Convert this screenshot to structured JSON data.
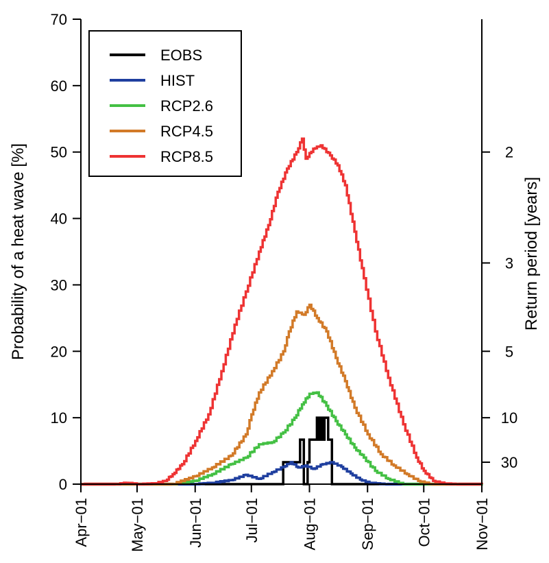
{
  "chart_data": {
    "type": "line",
    "ylabel": "Probability of a heat wave [%]",
    "ylabel_right": "Return period [years]",
    "ylim": [
      0,
      70
    ],
    "yticks": [
      0,
      10,
      20,
      30,
      40,
      50,
      60,
      70
    ],
    "xlim": [
      "2001-04-01",
      "2001-11-01"
    ],
    "xticks": [
      {
        "date": "2001-04-01",
        "label": "Apr−01"
      },
      {
        "date": "2001-05-01",
        "label": "May−01"
      },
      {
        "date": "2001-06-01",
        "label": "Jun−01"
      },
      {
        "date": "2001-07-01",
        "label": "Jul−01"
      },
      {
        "date": "2001-08-01",
        "label": "Aug−01"
      },
      {
        "date": "2001-09-01",
        "label": "Sep−01"
      },
      {
        "date": "2001-10-01",
        "label": "Oct−01"
      },
      {
        "date": "2001-11-01",
        "label": "Nov−01"
      }
    ],
    "right_ticks": [
      {
        "label": "2",
        "probability": 50
      },
      {
        "label": "3",
        "probability": 33.3
      },
      {
        "label": "5",
        "probability": 20
      },
      {
        "label": "10",
        "probability": 10
      },
      {
        "label": "30",
        "probability": 3.3
      }
    ],
    "legend_position": "top-left",
    "series": [
      {
        "name": "EOBS",
        "color": "#000000",
        "step": true,
        "x": [
          "2001-04-01",
          "2001-07-18",
          "2001-07-18",
          "2001-07-27",
          "2001-07-27",
          "2001-07-29",
          "2001-07-29",
          "2001-07-31",
          "2001-07-31",
          "2001-08-01",
          "2001-08-01",
          "2001-08-05",
          "2001-08-05",
          "2001-08-06",
          "2001-08-06",
          "2001-08-07",
          "2001-08-07",
          "2001-08-08",
          "2001-08-08",
          "2001-08-09",
          "2001-08-09",
          "2001-08-11",
          "2001-08-11",
          "2001-08-13",
          "2001-08-13",
          "2001-11-01"
        ],
        "y": [
          0,
          0,
          3.3,
          3.3,
          6.7,
          6.7,
          0,
          0,
          3.3,
          3.3,
          6.7,
          6.7,
          10,
          10,
          6.7,
          6.7,
          10,
          10,
          6.7,
          6.7,
          10,
          10,
          6.7,
          6.7,
          0,
          0
        ]
      },
      {
        "name": "HIST",
        "color": "#1f3f9f",
        "x": [
          "2001-04-01",
          "2001-06-01",
          "2001-06-10",
          "2001-06-20",
          "2001-06-28",
          "2001-07-05",
          "2001-07-12",
          "2001-07-18",
          "2001-07-22",
          "2001-07-26",
          "2001-07-30",
          "2001-08-03",
          "2001-08-08",
          "2001-08-13",
          "2001-08-18",
          "2001-08-23",
          "2001-08-28",
          "2001-09-02",
          "2001-09-10",
          "2001-11-01"
        ],
        "y": [
          0,
          0,
          0.2,
          0.6,
          1.4,
          0.8,
          1.8,
          2.6,
          3.3,
          2.5,
          2.8,
          2.3,
          3.0,
          3.3,
          2.6,
          1.6,
          0.7,
          0.2,
          0,
          0
        ]
      },
      {
        "name": "RCP2.6",
        "color": "#44c044",
        "x": [
          "2001-04-01",
          "2001-05-20",
          "2001-06-01",
          "2001-06-10",
          "2001-06-20",
          "2001-06-28",
          "2001-07-05",
          "2001-07-12",
          "2001-07-18",
          "2001-07-24",
          "2001-07-28",
          "2001-08-01",
          "2001-08-05",
          "2001-08-10",
          "2001-08-15",
          "2001-08-20",
          "2001-08-25",
          "2001-08-30",
          "2001-09-05",
          "2001-09-12",
          "2001-09-20",
          "2001-11-01"
        ],
        "y": [
          0,
          0,
          0.5,
          1.5,
          3.0,
          4.0,
          6.0,
          6.3,
          7.8,
          10.0,
          12.0,
          13.6,
          13.8,
          11.8,
          9.5,
          7.5,
          5.5,
          4.0,
          2.0,
          0.8,
          0,
          0
        ]
      },
      {
        "name": "RCP4.5",
        "color": "#d27a28",
        "x": [
          "2001-04-01",
          "2001-05-20",
          "2001-06-01",
          "2001-06-10",
          "2001-06-20",
          "2001-06-28",
          "2001-07-01",
          "2001-07-05",
          "2001-07-12",
          "2001-07-18",
          "2001-07-21",
          "2001-07-25",
          "2001-07-29",
          "2001-08-01",
          "2001-08-05",
          "2001-08-10",
          "2001-08-15",
          "2001-08-20",
          "2001-08-25",
          "2001-09-01",
          "2001-09-08",
          "2001-09-15",
          "2001-09-22",
          "2001-09-28",
          "2001-10-05",
          "2001-11-01"
        ],
        "y": [
          0,
          0,
          1.2,
          2.5,
          4.3,
          7.5,
          10.5,
          13.8,
          17.0,
          20.0,
          23.0,
          26.0,
          25.5,
          27.0,
          25.0,
          23.0,
          19.0,
          15.5,
          11.5,
          7.5,
          4.5,
          2.8,
          1.5,
          0.5,
          0,
          0
        ]
      },
      {
        "name": "RCP8.5",
        "color": "#ee3333",
        "x": [
          "2001-04-01",
          "2001-04-20",
          "2001-04-25",
          "2001-05-02",
          "2001-05-10",
          "2001-05-16",
          "2001-05-20",
          "2001-05-25",
          "2001-06-01",
          "2001-06-08",
          "2001-06-15",
          "2001-06-22",
          "2001-06-28",
          "2001-07-05",
          "2001-07-10",
          "2001-07-15",
          "2001-07-20",
          "2001-07-25",
          "2001-07-28",
          "2001-07-30",
          "2001-08-03",
          "2001-08-07",
          "2001-08-12",
          "2001-08-16",
          "2001-08-20",
          "2001-08-25",
          "2001-08-30",
          "2001-09-05",
          "2001-09-12",
          "2001-09-20",
          "2001-09-27",
          "2001-10-01",
          "2001-10-06",
          "2001-10-12",
          "2001-10-18",
          "2001-11-01"
        ],
        "y": [
          0,
          0,
          0.2,
          0,
          0.1,
          0.5,
          1.5,
          3.0,
          6.5,
          10.5,
          17.0,
          24.0,
          29.0,
          35.0,
          39.0,
          44.0,
          47.5,
          50.0,
          52.0,
          49.0,
          50.5,
          51.0,
          49.5,
          48.0,
          45.0,
          38.0,
          31.0,
          23.0,
          16.0,
          9.0,
          4.0,
          2.0,
          0.5,
          0.1,
          0,
          0
        ]
      }
    ]
  }
}
